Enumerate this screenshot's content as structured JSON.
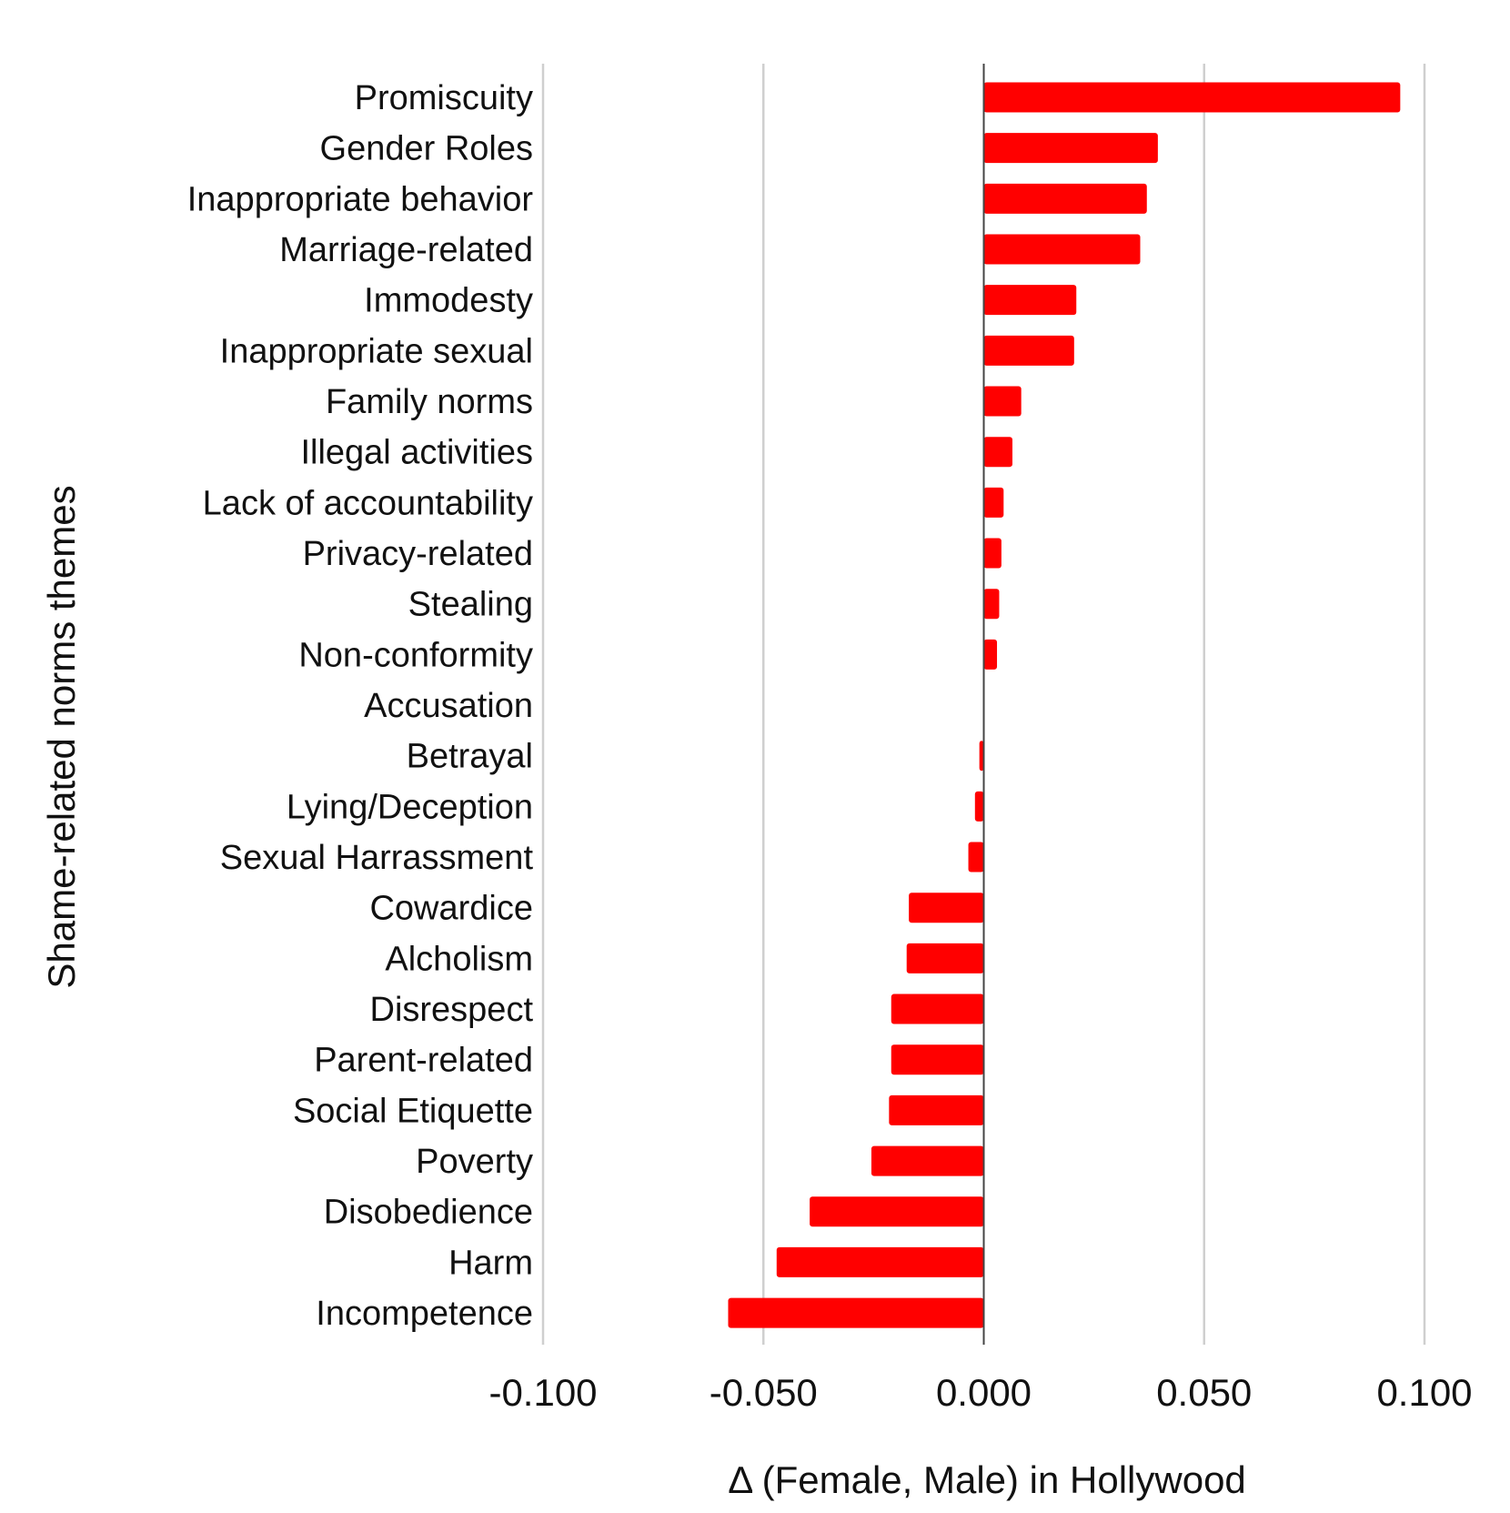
{
  "chart_data": {
    "type": "bar",
    "orientation": "horizontal",
    "ylabel": "Shame-related norms themes",
    "xlabel": "Δ (Female, Male) in Hollywood",
    "xlim": [
      -0.1,
      0.1
    ],
    "xticks": [
      -0.1,
      -0.05,
      0.0,
      0.05,
      0.1
    ],
    "xtick_labels": [
      "-0.100",
      "-0.050",
      "0.000",
      "0.050",
      "0.100"
    ],
    "grid": "vertical",
    "bar_color": "#ff0000",
    "categories": [
      "Promiscuity",
      "Gender Roles",
      "Inappropriate behavior",
      "Marriage-related",
      "Immodesty",
      "Inappropriate sexual",
      "Family norms",
      "Illegal activities",
      "Lack of accountability",
      "Privacy-related",
      "Stealing",
      "Non-conformity",
      "Accusation",
      "Betrayal",
      "Lying/Deception",
      "Sexual Harrassment",
      "Cowardice",
      "Alcholism",
      "Disrespect",
      "Parent-related",
      "Social Etiquette",
      "Poverty",
      "Disobedience",
      "Harm",
      "Incompetence"
    ],
    "values": [
      0.0945,
      0.0395,
      0.037,
      0.0355,
      0.021,
      0.0205,
      0.0085,
      0.0065,
      0.0045,
      0.004,
      0.0035,
      0.003,
      0.0,
      -0.001,
      -0.002,
      -0.0035,
      -0.017,
      -0.0175,
      -0.021,
      -0.021,
      -0.0215,
      -0.0255,
      -0.0395,
      -0.047,
      -0.058
    ]
  }
}
